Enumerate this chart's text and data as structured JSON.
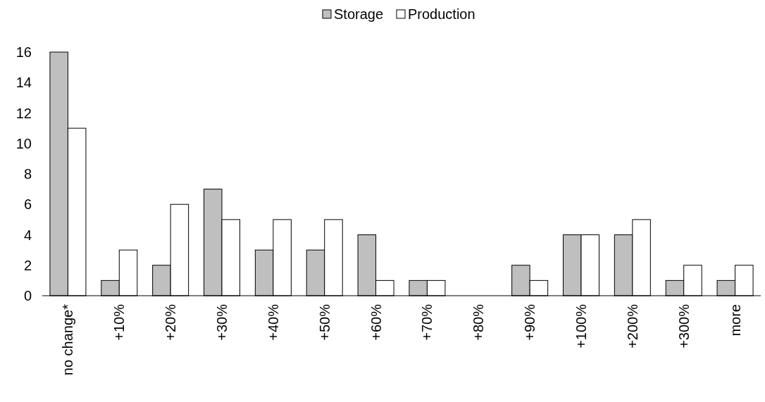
{
  "chart_data": {
    "type": "bar",
    "categories": [
      "no change*",
      "+10%",
      "+20%",
      "+30%",
      "+40%",
      "+50%",
      "+60%",
      "+70%",
      "+80%",
      "+90%",
      "+100%",
      "+200%",
      "+300%",
      "more"
    ],
    "series": [
      {
        "name": "Storage",
        "color": "#bfbfbf",
        "values": [
          16,
          1,
          2,
          7,
          3,
          3,
          4,
          1,
          0,
          2,
          4,
          4,
          1,
          1
        ]
      },
      {
        "name": "Production",
        "color": "#ffffff",
        "values": [
          11,
          3,
          6,
          5,
          5,
          5,
          1,
          1,
          0,
          1,
          4,
          5,
          2,
          2
        ]
      }
    ],
    "ylim": [
      0,
      16
    ],
    "yticks": [
      0,
      2,
      4,
      6,
      8,
      10,
      12,
      14,
      16
    ],
    "grid": false,
    "legend": "top"
  }
}
